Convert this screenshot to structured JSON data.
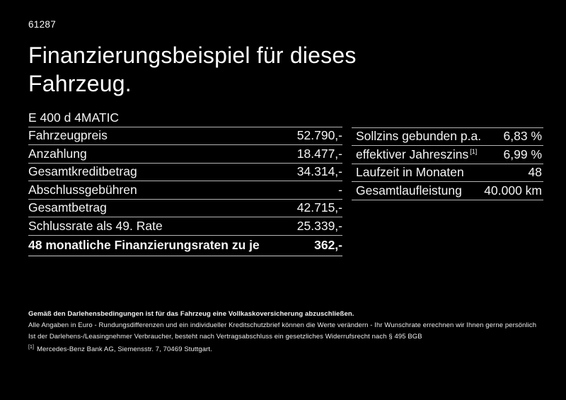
{
  "page": {
    "ref_number": "61287",
    "title": "Finanzierungsbeispiel für dieses Fahrzeug.",
    "model": "E 400 d 4MATIC"
  },
  "finance_table": {
    "rows": [
      {
        "label": "Fahrzeugpreis",
        "value": "52.790,-"
      },
      {
        "label": "Anzahlung",
        "value": "18.477,-"
      },
      {
        "label": "Gesamtkreditbetrag",
        "value": "34.314,-"
      },
      {
        "label": "Abschlussgebühren",
        "value": "-"
      },
      {
        "label": "Gesamtbetrag",
        "value": "42.715,-"
      },
      {
        "label": "Schlussrate als 49. Rate",
        "value": "25.339,-"
      }
    ],
    "total_row": {
      "label": "48 monatliche Finanzierungsraten zu je",
      "value": "362,-"
    }
  },
  "conditions_table": {
    "rows": [
      {
        "label": "Sollzins gebunden p.a.",
        "sup": "",
        "value": "6,83 %"
      },
      {
        "label": "effektiver Jahreszins",
        "sup": "[1]",
        "value": "6,99 %"
      },
      {
        "label": "Laufzeit in Monaten",
        "sup": "",
        "value": "48"
      },
      {
        "label": "Gesamtlaufleistung",
        "sup": "",
        "value": "40.000 km"
      }
    ]
  },
  "footer": {
    "bold_note": "Gemäß den Darlehensbedingungen ist für das Fahrzeug eine Vollkaskoversicherung abzuschließen.",
    "note_1": "Alle Angaben in Euro - Rundungsdifferenzen und ein individueller Kreditschutzbrief können die Werte verändern - Ihr Wunschrate errechnen wir Ihnen gerne persönlich",
    "note_2": "Ist der Darlehens-/Leasingnehmer Verbraucher, besteht nach Vertragsabschluss ein gesetzliches Widerrufsrecht nach § 495 BGB",
    "footnote_marker": "[1]",
    "footnote_text": "Mercedes-Benz Bank AG, Siemensstr. 7, 70469 Stuttgart."
  },
  "colors": {
    "background": "#000000",
    "text": "#f4f4f4",
    "divider": "#b4b4b4"
  }
}
